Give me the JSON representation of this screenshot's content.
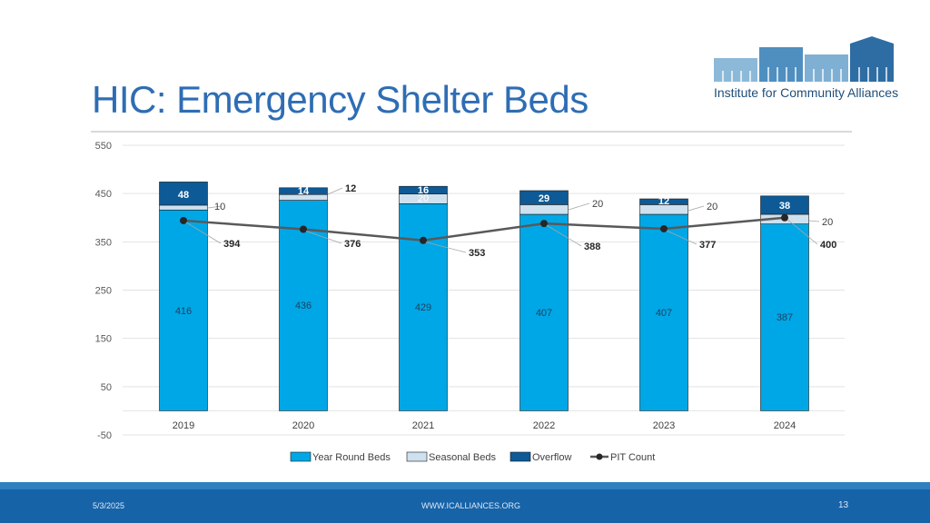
{
  "slide": {
    "title": "HIC: Emergency Shelter Beds",
    "logo_text": "Institute for Community Alliances",
    "footer_date": "5/3/2025",
    "footer_site": "WWW.ICALLIANCES.ORG",
    "page_number": "13"
  },
  "colors": {
    "year_round": "#00a7e6",
    "seasonal": "#cfe0ee",
    "overflow": "#0d5a96",
    "pit": "#595959",
    "accent": "#2e6db4"
  },
  "chart_data": {
    "type": "bar",
    "title": "",
    "categories": [
      "2019",
      "2020",
      "2021",
      "2022",
      "2023",
      "2024"
    ],
    "series": [
      {
        "name": "Year Round Beds",
        "kind": "stacked-bar",
        "values": [
          416,
          436,
          429,
          407,
          407,
          387
        ]
      },
      {
        "name": "Seasonal Beds",
        "kind": "stacked-bar",
        "values": [
          10,
          12,
          20,
          20,
          20,
          20
        ]
      },
      {
        "name": "Overflow",
        "kind": "stacked-bar",
        "values": [
          48,
          14,
          16,
          29,
          12,
          38
        ]
      },
      {
        "name": "PIT Count",
        "kind": "line",
        "values": [
          394,
          376,
          353,
          388,
          377,
          400
        ]
      }
    ],
    "y_ticks": [
      "550",
      "450",
      "350",
      "250",
      "150",
      "50",
      "-50"
    ],
    "ylim": [
      -50,
      550
    ],
    "xlabel": "",
    "ylabel": "",
    "legend": "bottom",
    "grid": true
  }
}
